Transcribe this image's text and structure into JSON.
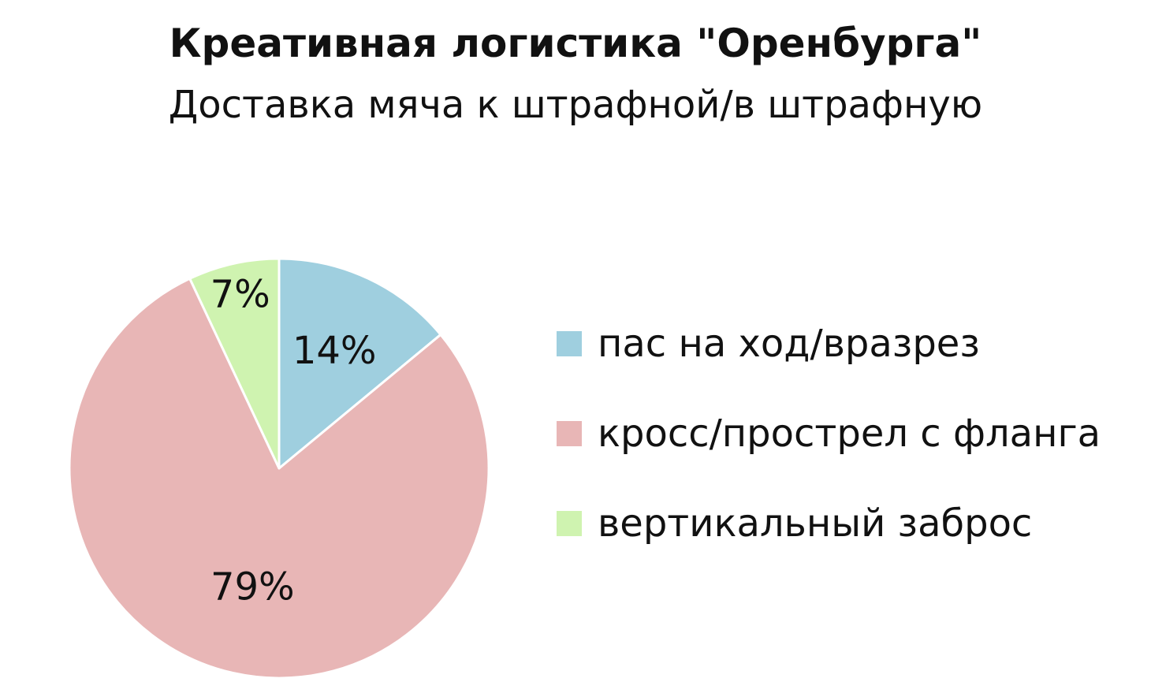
{
  "chart_data": {
    "type": "pie",
    "title": "Креативная логистика \"Оренбурга\"",
    "subtitle": "Доставка мяча к штрафной/в штрафную",
    "categories": [
      "пас на ход/вразрез",
      "кросс/прострел с фланга",
      "вертикальный заброс"
    ],
    "values": [
      14,
      79,
      7
    ],
    "value_labels": [
      "14%",
      "79%",
      "7%"
    ],
    "colors": [
      "#9fcfdf",
      "#e8b6b6",
      "#cff3b0"
    ],
    "legend_position": "right"
  }
}
